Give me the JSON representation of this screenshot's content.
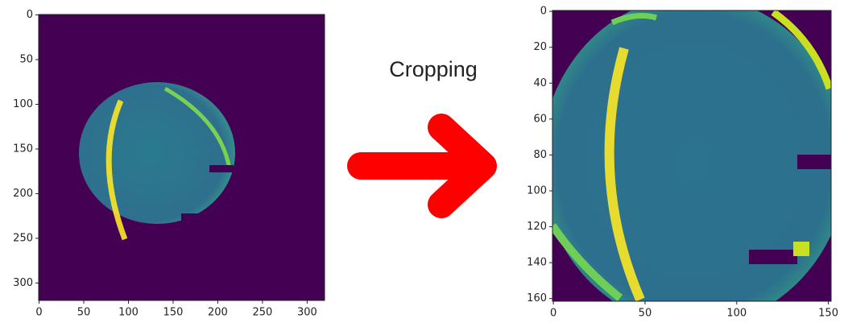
{
  "annotation": "Cropping",
  "chart_data": [
    {
      "type": "image",
      "xlim": [
        -0.5,
        319.5
      ],
      "ylim": [
        319.5,
        -0.5
      ],
      "xticks": [
        0,
        50,
        100,
        150,
        200,
        250,
        300
      ],
      "yticks": [
        0,
        50,
        100,
        150,
        200,
        250,
        300
      ]
    },
    {
      "type": "image",
      "xlim": [
        -0.5,
        151.5
      ],
      "ylim": [
        161.5,
        -0.5
      ],
      "xticks": [
        0,
        50,
        100,
        150
      ],
      "yticks": [
        0,
        20,
        40,
        60,
        80,
        100,
        120,
        140,
        160
      ]
    }
  ]
}
